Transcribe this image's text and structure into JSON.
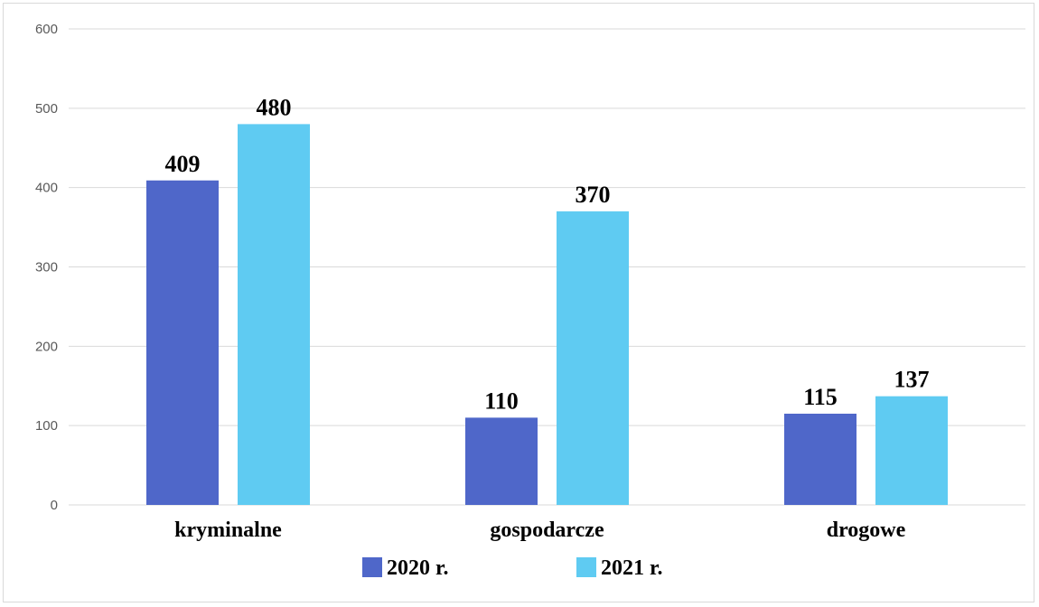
{
  "chart_data": {
    "type": "bar",
    "categories": [
      "kryminalne",
      "gospodarcze",
      "drogowe"
    ],
    "series": [
      {
        "name": "2020 r.",
        "values": [
          409,
          110,
          115
        ],
        "color": "#4f67c9"
      },
      {
        "name": "2021 r.",
        "values": [
          480,
          370,
          137
        ],
        "color": "#5fcbf2"
      }
    ],
    "yticks": [
      "0",
      "100",
      "200",
      "300",
      "400",
      "500",
      "600"
    ],
    "ylim": [
      0,
      600
    ],
    "grid": true,
    "legend_position": "bottom",
    "grid_color": "#d9d9d9"
  }
}
